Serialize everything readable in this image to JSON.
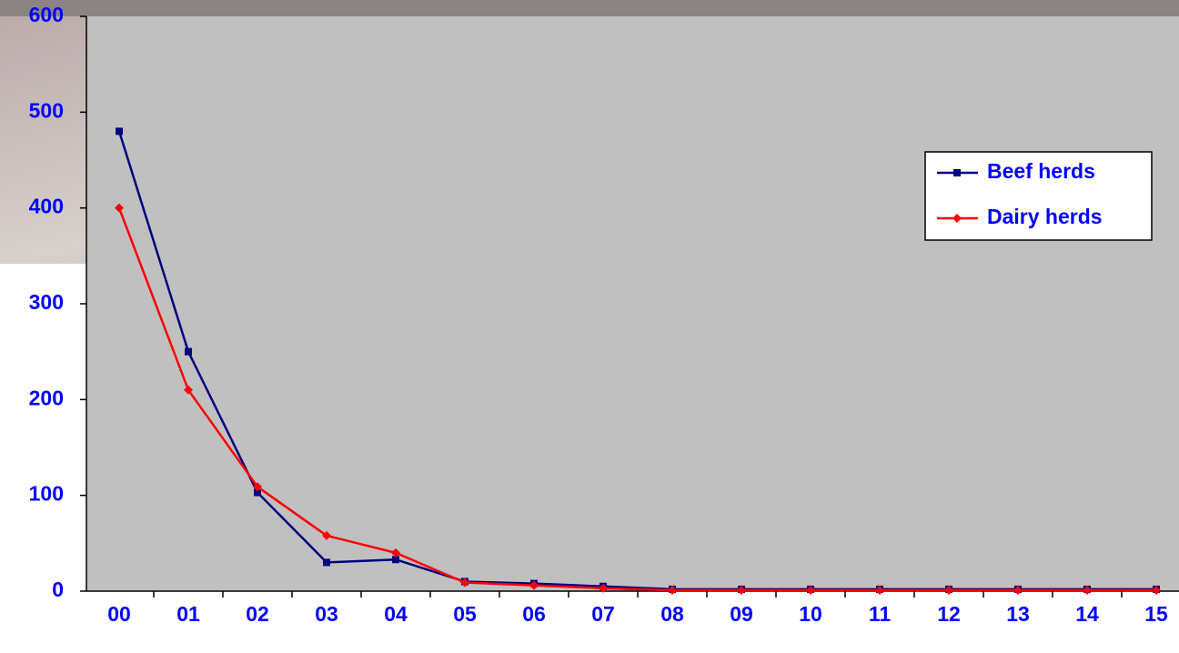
{
  "chart_data": {
    "type": "line",
    "categories": [
      "00",
      "01",
      "02",
      "03",
      "04",
      "05",
      "06",
      "07",
      "08",
      "09",
      "10",
      "11",
      "12",
      "13",
      "14",
      "15"
    ],
    "series": [
      {
        "name": "Beef herds",
        "color": "#000080",
        "marker": "square",
        "values": [
          480,
          250,
          103,
          30,
          33,
          10,
          8,
          5,
          2,
          2,
          2,
          2,
          2,
          2,
          2,
          2
        ]
      },
      {
        "name": "Dairy herds",
        "color": "#ff0000",
        "marker": "diamond",
        "values": [
          400,
          210,
          109,
          58,
          40,
          9,
          6,
          3,
          1,
          1,
          1,
          1,
          1,
          1,
          1,
          1
        ]
      }
    ],
    "ylim": [
      0,
      600
    ],
    "yticks": [
      0,
      100,
      200,
      300,
      400,
      500,
      600
    ],
    "grid": false
  }
}
